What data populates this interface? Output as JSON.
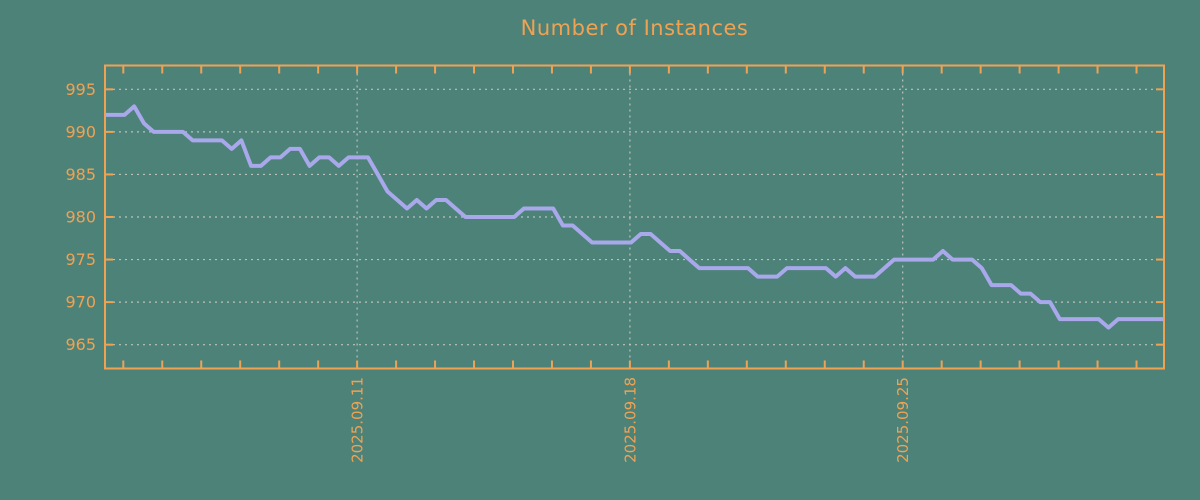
{
  "title": "Number of Instances",
  "colors": {
    "background": "#4d8279",
    "accent_orange": "#f0a253",
    "grid": "#c9c9c1",
    "line": "#a8a8ea"
  },
  "chart_data": {
    "type": "line",
    "title": "Number of Instances",
    "series_name": "instances",
    "legend": false,
    "grid": true,
    "x_start": "2025.09.04",
    "x_end": "2025.10.01",
    "interval_hours": 6,
    "x_tick_interval": "1 day",
    "x_tick_day_count": 27,
    "x_labeled_ticks": [
      {
        "label": "2025.09.11",
        "day_index": 6
      },
      {
        "label": "2025.09.18",
        "day_index": 13
      },
      {
        "label": "2025.09.25",
        "day_index": 20
      }
    ],
    "y_ticks": [
      965,
      970,
      975,
      980,
      985,
      990,
      995
    ],
    "ylim": [
      962.2,
      997.8
    ],
    "values": [
      992,
      992,
      992,
      993,
      991,
      990,
      990,
      990,
      990,
      989,
      989,
      989,
      989,
      988,
      989,
      986,
      986,
      987,
      987,
      988,
      988,
      986,
      987,
      987,
      986,
      987,
      987,
      987,
      985,
      983,
      982,
      981,
      982,
      981,
      982,
      982,
      981,
      980,
      980,
      980,
      980,
      980,
      980,
      981,
      981,
      981,
      981,
      979,
      979,
      978,
      977,
      977,
      977,
      977,
      977,
      978,
      978,
      977,
      976,
      976,
      975,
      974,
      974,
      974,
      974,
      974,
      974,
      973,
      973,
      973,
      974,
      974,
      974,
      974,
      974,
      973,
      974,
      973,
      973,
      973,
      974,
      975,
      975,
      975,
      975,
      975,
      976,
      975,
      975,
      975,
      974,
      972,
      972,
      972,
      971,
      971,
      970,
      970,
      968,
      968,
      968,
      968,
      968,
      967,
      968,
      968,
      968,
      968,
      968,
      968
    ]
  }
}
